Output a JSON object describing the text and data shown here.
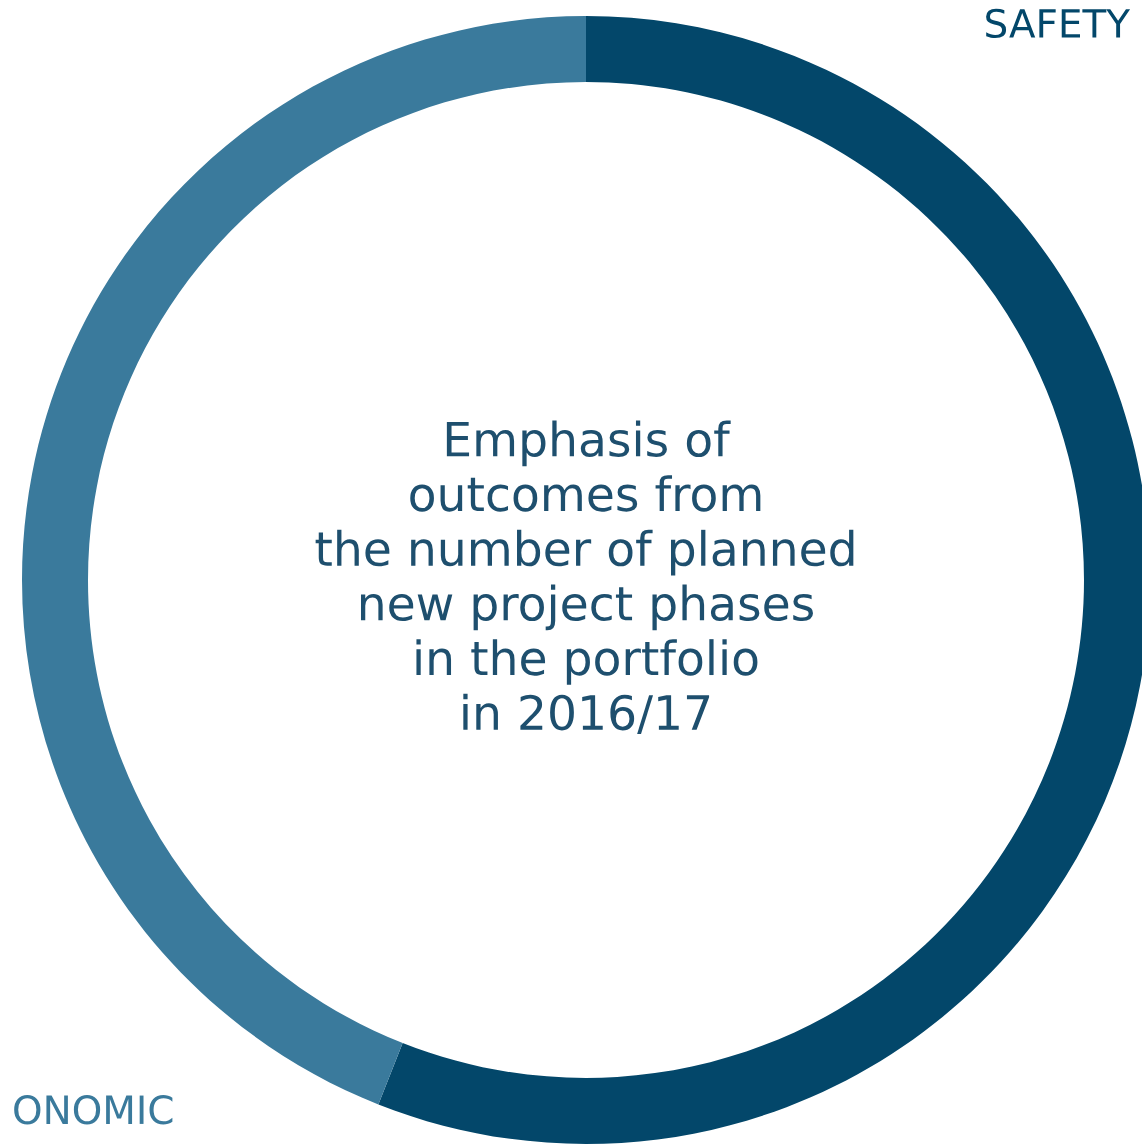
{
  "chart_data": {
    "type": "donut",
    "title": "Emphasis of\noutcomes from\nthe number of planned\nnew project phases\nin the portfolio\nin 2016/17",
    "categories": [
      "SAFETY",
      "ONOMIC"
    ],
    "values": [
      56,
      44
    ],
    "colors": [
      "#03476a",
      "#3a7a9c"
    ]
  }
}
